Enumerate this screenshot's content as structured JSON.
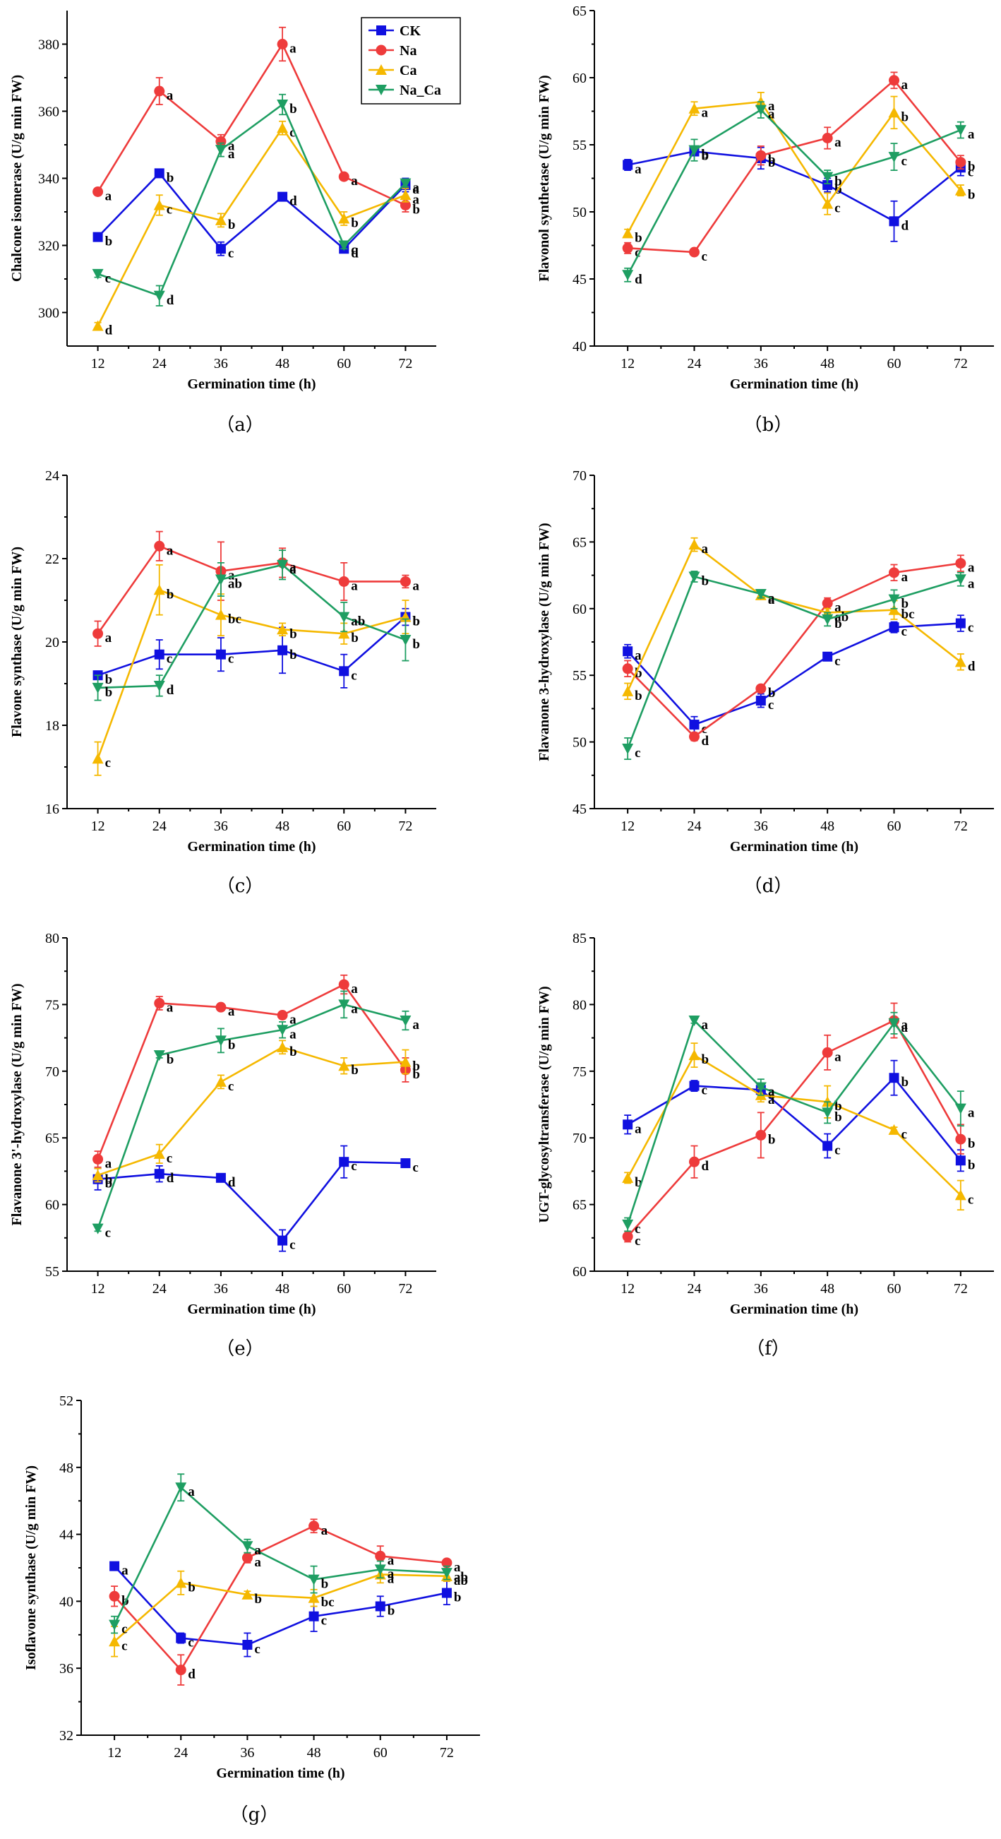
{
  "colors": {
    "CK": "#1010e0",
    "Na": "#ee3b3b",
    "Ca": "#f5b800",
    "Na_Ca": "#1e9e62"
  },
  "legend": [
    {
      "name": "CK",
      "color": "#1010e0",
      "marker": "square"
    },
    {
      "name": "Na",
      "color": "#ee3b3b",
      "marker": "circle"
    },
    {
      "name": "Ca",
      "color": "#f5b800",
      "marker": "triangle-up"
    },
    {
      "name": "Na_Ca",
      "color": "#1e9e62",
      "marker": "triangle-down"
    }
  ],
  "chart_data": [
    {
      "type": "line",
      "panel": "（a）",
      "xlabel": "Germination time (h)",
      "ylabel": "Chalcone isomerase (U/g min FW)",
      "x": [
        12,
        24,
        36,
        48,
        60,
        72
      ],
      "ylim": [
        290,
        390
      ],
      "yticks": [
        300,
        320,
        340,
        360,
        380
      ],
      "legend_position": "top-right",
      "series": [
        {
          "name": "CK",
          "values": [
            322.5,
            341.5,
            319,
            334.5,
            319,
            338
          ],
          "errors": [
            1,
            1,
            2,
            1,
            1,
            2
          ],
          "letters": [
            "b",
            "b",
            "c",
            "d",
            "d",
            "a"
          ]
        },
        {
          "name": "Na",
          "values": [
            336,
            366,
            351,
            380,
            340.5,
            332
          ],
          "errors": [
            1,
            4,
            2,
            5,
            1,
            2
          ],
          "letters": [
            "a",
            "a",
            "a",
            "a",
            "a",
            "b"
          ]
        },
        {
          "name": "Ca",
          "values": [
            296,
            332,
            327.5,
            355,
            328,
            335
          ],
          "errors": [
            1,
            3,
            2,
            2,
            2,
            2
          ],
          "letters": [
            "d",
            "c",
            "b",
            "c",
            "b",
            "a"
          ]
        },
        {
          "name": "Na_Ca",
          "values": [
            311.5,
            305,
            348.5,
            362,
            320,
            338.5
          ],
          "errors": [
            1,
            3,
            2,
            3,
            1,
            1
          ],
          "letters": [
            "c",
            "d",
            "a",
            "b",
            "c",
            "a"
          ]
        }
      ]
    },
    {
      "type": "line",
      "panel": "（b）",
      "xlabel": "Germination time (h)",
      "ylabel": "Flavonol synthetase (U/g min FW)",
      "x": [
        12,
        24,
        36,
        48,
        60,
        72
      ],
      "ylim": [
        40,
        65
      ],
      "yticks": [
        40,
        45,
        50,
        55,
        60,
        65
      ],
      "series": [
        {
          "name": "CK",
          "values": [
            53.5,
            54.5,
            54,
            52,
            49.3,
            53.3
          ],
          "errors": [
            0.4,
            0.3,
            0.8,
            0.5,
            1.5,
            0.6
          ],
          "letters": [
            "a",
            "b",
            "b",
            "b",
            "d",
            "c"
          ]
        },
        {
          "name": "Na",
          "values": [
            47.3,
            47,
            54.2,
            55.5,
            59.8,
            53.7
          ],
          "errors": [
            0.4,
            0.2,
            0.7,
            0.8,
            0.6,
            0.5
          ],
          "letters": [
            "c",
            "c",
            "b",
            "a",
            "a",
            "b"
          ]
        },
        {
          "name": "Ca",
          "values": [
            48.4,
            57.7,
            58.2,
            50.6,
            57.4,
            51.6
          ],
          "errors": [
            0.3,
            0.5,
            0.7,
            0.8,
            1.2,
            0.4
          ],
          "letters": [
            "b",
            "a",
            "a",
            "c",
            "b",
            "b"
          ]
        },
        {
          "name": "Na_Ca",
          "values": [
            45.3,
            54.6,
            57.6,
            52.6,
            54.1,
            56.1
          ],
          "errors": [
            0.5,
            0.8,
            0.6,
            0.5,
            1.0,
            0.6
          ],
          "letters": [
            "d",
            "b",
            "a",
            "b",
            "c",
            "a"
          ]
        }
      ]
    },
    {
      "type": "line",
      "panel": "（c）",
      "xlabel": "Germination time (h)",
      "ylabel": "Flavone synthase (U/g min FW)",
      "x": [
        12,
        24,
        36,
        48,
        60,
        72
      ],
      "ylim": [
        16,
        24
      ],
      "yticks": [
        16,
        18,
        20,
        22,
        24
      ],
      "series": [
        {
          "name": "CK",
          "values": [
            19.2,
            19.7,
            19.7,
            19.8,
            19.3,
            20.6
          ],
          "errors": [
            0.1,
            0.35,
            0.4,
            0.55,
            0.4,
            0.2
          ],
          "letters": [
            "b",
            "c",
            "c",
            "b",
            "c",
            "b"
          ]
        },
        {
          "name": "Na",
          "values": [
            20.2,
            22.3,
            21.7,
            21.9,
            21.45,
            21.45
          ],
          "errors": [
            0.3,
            0.35,
            0.7,
            0.35,
            0.45,
            0.15
          ],
          "letters": [
            "a",
            "a",
            "a",
            "a",
            "a",
            "a"
          ]
        },
        {
          "name": "Ca",
          "values": [
            17.2,
            21.25,
            20.65,
            20.3,
            20.2,
            20.6
          ],
          "errors": [
            0.4,
            0.6,
            0.5,
            0.15,
            0.25,
            0.4
          ],
          "letters": [
            "c",
            "b",
            "bc",
            "b",
            "b",
            "b"
          ]
        },
        {
          "name": "Na_Ca",
          "values": [
            18.9,
            18.95,
            21.5,
            21.85,
            20.6,
            20.05
          ],
          "errors": [
            0.3,
            0.25,
            0.4,
            0.35,
            0.35,
            0.5
          ],
          "letters": [
            "b",
            "d",
            "ab",
            "a",
            "ab",
            "b"
          ]
        }
      ]
    },
    {
      "type": "line",
      "panel": "（d）",
      "xlabel": "Germination time (h)",
      "ylabel": "Flavanone 3-hydroxylase (U/g min FW)",
      "x": [
        12,
        24,
        36,
        48,
        60,
        72
      ],
      "ylim": [
        45,
        70
      ],
      "yticks": [
        45,
        50,
        55,
        60,
        65,
        70
      ],
      "series": [
        {
          "name": "CK",
          "values": [
            56.8,
            51.3,
            53.1,
            56.4,
            58.6,
            58.9
          ],
          "errors": [
            0.5,
            0.6,
            0.5,
            0.2,
            0.4,
            0.6
          ],
          "letters": [
            "a",
            "c",
            "c",
            "c",
            "c",
            "c"
          ]
        },
        {
          "name": "Na",
          "values": [
            55.5,
            50.4,
            54,
            60.4,
            62.7,
            63.4
          ],
          "errors": [
            0.6,
            0.3,
            0.2,
            0.4,
            0.6,
            0.6
          ],
          "letters": [
            "b",
            "d",
            "b",
            "a",
            "a",
            "a"
          ]
        },
        {
          "name": "Ca",
          "values": [
            53.8,
            64.8,
            61,
            59.7,
            59.9,
            56
          ],
          "errors": [
            0.6,
            0.5,
            0.3,
            0.3,
            0.7,
            0.6
          ],
          "letters": [
            "b",
            "a",
            "a",
            "ab",
            "bc",
            "d"
          ]
        },
        {
          "name": "Na_Ca",
          "values": [
            49.5,
            62.4,
            61.1,
            59.2,
            60.7,
            62.2
          ],
          "errors": [
            0.8,
            0.4,
            0.3,
            0.5,
            0.7,
            0.5
          ],
          "letters": [
            "c",
            "b",
            "a",
            "b",
            "b",
            "a"
          ]
        }
      ]
    },
    {
      "type": "line",
      "panel": "（e）",
      "xlabel": "Germination time (h)",
      "ylabel": "Flavanone 3'-hydroxylase (U/g min FW)",
      "x": [
        12,
        24,
        36,
        48,
        60,
        72
      ],
      "ylim": [
        55,
        80
      ],
      "yticks": [
        55,
        60,
        65,
        70,
        75,
        80
      ],
      "series": [
        {
          "name": "CK",
          "values": [
            61.9,
            62.3,
            62,
            57.3,
            63.2,
            63.1
          ],
          "errors": [
            0.8,
            0.6,
            0.2,
            0.8,
            1.2,
            0.3
          ],
          "letters": [
            "b",
            "d",
            "d",
            "c",
            "c",
            "c"
          ]
        },
        {
          "name": "Na",
          "values": [
            63.4,
            75.1,
            74.8,
            74.2,
            76.5,
            70.1
          ],
          "errors": [
            0.6,
            0.5,
            0.2,
            0.2,
            0.7,
            0.9
          ],
          "letters": [
            "a",
            "a",
            "a",
            "a",
            "a",
            "b"
          ]
        },
        {
          "name": "Ca",
          "values": [
            62.2,
            63.8,
            69.2,
            71.8,
            70.4,
            70.7
          ],
          "errors": [
            0.5,
            0.7,
            0.5,
            0.5,
            0.6,
            0.9
          ],
          "letters": [
            "b",
            "c",
            "c",
            "b",
            "b",
            "b"
          ]
        },
        {
          "name": "Na_Ca",
          "values": [
            58.2,
            71.2,
            72.3,
            73.1,
            75,
            73.8
          ],
          "errors": [
            0.2,
            0.2,
            0.9,
            0.6,
            1.0,
            0.7
          ],
          "letters": [
            "c",
            "b",
            "b",
            "a",
            "a",
            "a"
          ]
        }
      ]
    },
    {
      "type": "line",
      "panel": "（f）",
      "xlabel": "Germination time (h)",
      "ylabel": "UGT-glycosyltransferase (U/g min FW)",
      "x": [
        12,
        24,
        36,
        48,
        60,
        72
      ],
      "ylim": [
        60,
        85
      ],
      "yticks": [
        60,
        65,
        70,
        75,
        80,
        85
      ],
      "series": [
        {
          "name": "CK",
          "values": [
            71,
            73.9,
            73.6,
            69.4,
            74.5,
            68.3
          ],
          "errors": [
            0.7,
            0.4,
            0.4,
            0.9,
            1.3,
            0.8
          ],
          "letters": [
            "a",
            "c",
            "a",
            "c",
            "b",
            "b"
          ]
        },
        {
          "name": "Na",
          "values": [
            62.6,
            68.2,
            70.2,
            76.4,
            78.8,
            69.9
          ],
          "errors": [
            0.4,
            1.2,
            1.7,
            1.3,
            1.3,
            1.1
          ],
          "letters": [
            "c",
            "d",
            "b",
            "a",
            "a",
            "b"
          ]
        },
        {
          "name": "Ca",
          "values": [
            67,
            76.2,
            73.2,
            72.7,
            70.6,
            65.7
          ],
          "errors": [
            0.4,
            0.9,
            0.5,
            1.2,
            0.2,
            1.1
          ],
          "letters": [
            "b",
            "b",
            "a",
            "b",
            "c",
            "c"
          ]
        },
        {
          "name": "Na_Ca",
          "values": [
            63.5,
            78.8,
            73.8,
            71.9,
            78.6,
            72.2
          ],
          "errors": [
            0.5,
            0.2,
            0.6,
            0.8,
            0.8,
            1.3
          ],
          "letters": [
            "c",
            "a",
            "a",
            "b",
            "a",
            "a"
          ]
        }
      ]
    },
    {
      "type": "line",
      "panel": "（g）",
      "xlabel": "Germination time (h)",
      "ylabel": "Isoflavone synthase (U/g min FW)",
      "x": [
        12,
        24,
        36,
        48,
        60,
        72
      ],
      "ylim": [
        32,
        52
      ],
      "yticks": [
        32,
        36,
        40,
        44,
        48,
        52
      ],
      "series": [
        {
          "name": "CK",
          "values": [
            42.1,
            37.8,
            37.4,
            39.1,
            39.7,
            40.5
          ],
          "errors": [
            0.2,
            0.3,
            0.7,
            0.9,
            0.6,
            0.7
          ],
          "letters": [
            "a",
            "c",
            "c",
            "c",
            "b",
            "b"
          ]
        },
        {
          "name": "Na",
          "values": [
            40.3,
            35.9,
            42.6,
            44.5,
            42.7,
            42.3
          ],
          "errors": [
            0.6,
            0.9,
            0.3,
            0.4,
            0.6,
            0.2
          ],
          "letters": [
            "b",
            "d",
            "a",
            "a",
            "a",
            "a"
          ]
        },
        {
          "name": "Ca",
          "values": [
            37.6,
            41.1,
            40.4,
            40.2,
            41.6,
            41.5
          ],
          "errors": [
            0.9,
            0.7,
            0.2,
            0.5,
            0.5,
            0.3
          ],
          "letters": [
            "c",
            "b",
            "b",
            "bc",
            "a",
            "ab"
          ]
        },
        {
          "name": "Na_Ca",
          "values": [
            38.6,
            46.8,
            43.3,
            41.3,
            41.9,
            41.7
          ],
          "errors": [
            0.5,
            0.8,
            0.4,
            0.8,
            0.5,
            0.4
          ],
          "letters": [
            "c",
            "a",
            "a",
            "b",
            "a",
            "ab"
          ]
        }
      ]
    }
  ]
}
